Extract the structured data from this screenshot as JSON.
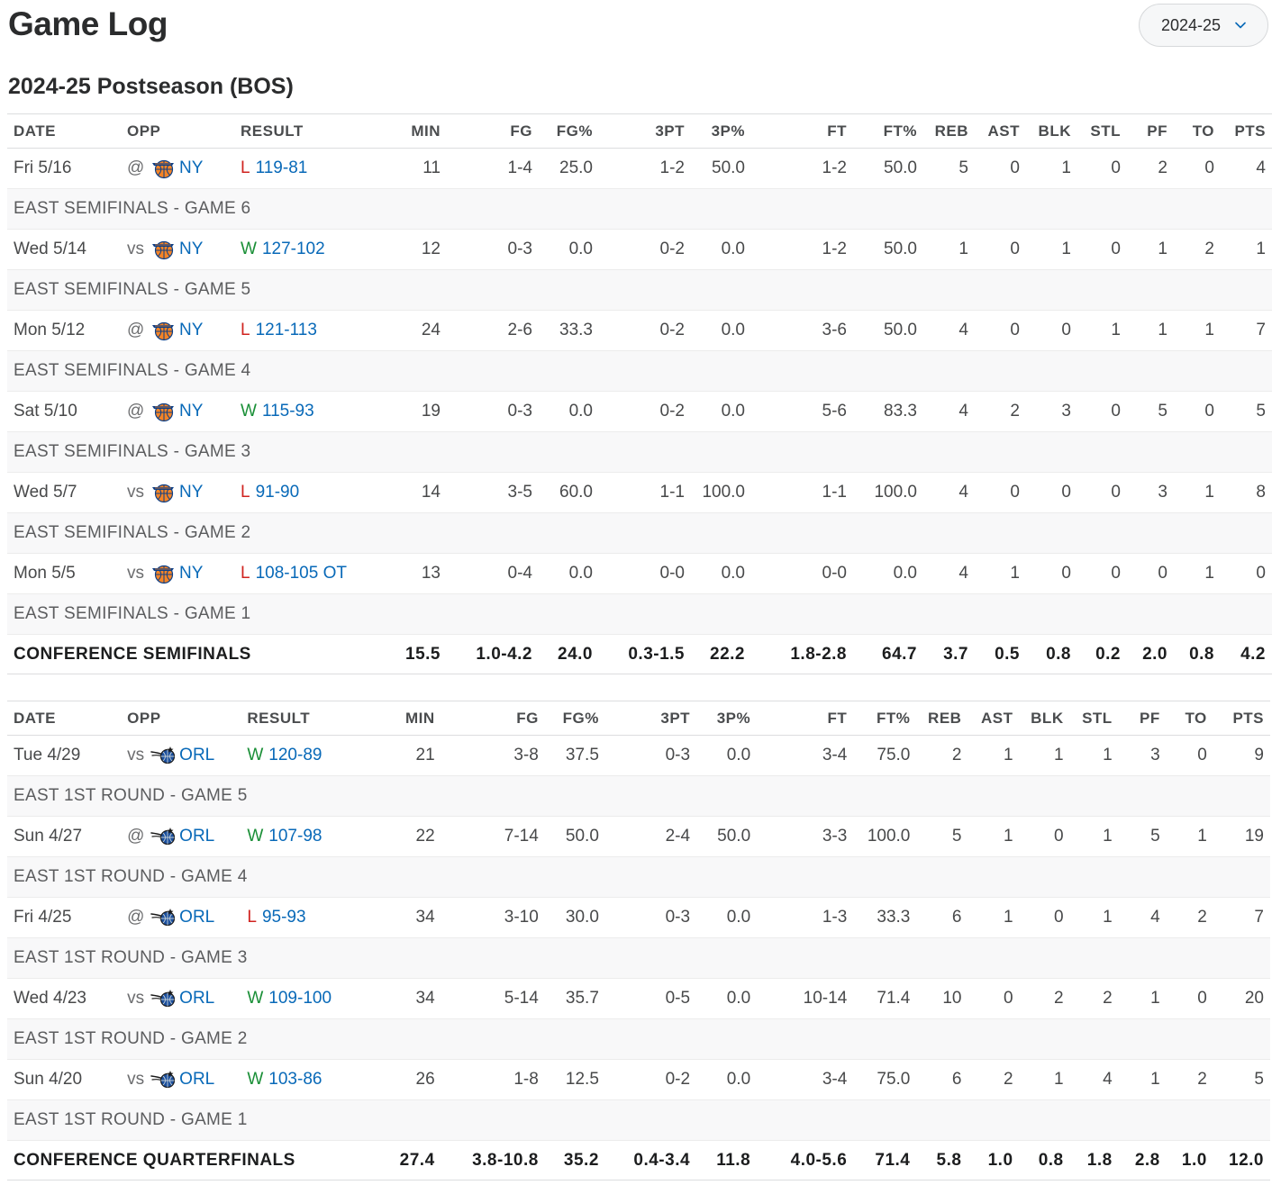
{
  "page_title": "Game Log",
  "season_selector": {
    "value": "2024-25"
  },
  "section_title": "2024-25 Postseason (BOS)",
  "columns": [
    "DATE",
    "OPP",
    "RESULT",
    "MIN",
    "FG",
    "FG%",
    "3PT",
    "3P%",
    "FT",
    "FT%",
    "REB",
    "AST",
    "BLK",
    "STL",
    "PF",
    "TO",
    "PTS"
  ],
  "series": [
    {
      "games": [
        {
          "date": "Fri 5/16",
          "venue": "@",
          "opp": "NY",
          "logo": "knicks-logo",
          "wl": "L",
          "score": "119-81",
          "stats": [
            "11",
            "1-4",
            "25.0",
            "1-2",
            "50.0",
            "1-2",
            "50.0",
            "5",
            "0",
            "1",
            "0",
            "2",
            "0",
            "4"
          ],
          "note": "EAST SEMIFINALS - GAME 6"
        },
        {
          "date": "Wed 5/14",
          "venue": "vs",
          "opp": "NY",
          "logo": "knicks-logo",
          "wl": "W",
          "score": "127-102",
          "stats": [
            "12",
            "0-3",
            "0.0",
            "0-2",
            "0.0",
            "1-2",
            "50.0",
            "1",
            "0",
            "1",
            "0",
            "1",
            "2",
            "1"
          ],
          "note": "EAST SEMIFINALS - GAME 5"
        },
        {
          "date": "Mon 5/12",
          "venue": "@",
          "opp": "NY",
          "logo": "knicks-logo",
          "wl": "L",
          "score": "121-113",
          "stats": [
            "24",
            "2-6",
            "33.3",
            "0-2",
            "0.0",
            "3-6",
            "50.0",
            "4",
            "0",
            "0",
            "1",
            "1",
            "1",
            "7"
          ],
          "note": "EAST SEMIFINALS - GAME 4"
        },
        {
          "date": "Sat 5/10",
          "venue": "@",
          "opp": "NY",
          "logo": "knicks-logo",
          "wl": "W",
          "score": "115-93",
          "stats": [
            "19",
            "0-3",
            "0.0",
            "0-2",
            "0.0",
            "5-6",
            "83.3",
            "4",
            "2",
            "3",
            "0",
            "5",
            "0",
            "5"
          ],
          "note": "EAST SEMIFINALS - GAME 3"
        },
        {
          "date": "Wed 5/7",
          "venue": "vs",
          "opp": "NY",
          "logo": "knicks-logo",
          "wl": "L",
          "score": "91-90",
          "stats": [
            "14",
            "3-5",
            "60.0",
            "1-1",
            "100.0",
            "1-1",
            "100.0",
            "4",
            "0",
            "0",
            "0",
            "3",
            "1",
            "8"
          ],
          "note": "EAST SEMIFINALS - GAME 2"
        },
        {
          "date": "Mon 5/5",
          "venue": "vs",
          "opp": "NY",
          "logo": "knicks-logo",
          "wl": "L",
          "score": "108-105 OT",
          "stats": [
            "13",
            "0-4",
            "0.0",
            "0-0",
            "0.0",
            "0-0",
            "0.0",
            "4",
            "1",
            "0",
            "0",
            "0",
            "1",
            "0"
          ],
          "note": "EAST SEMIFINALS - GAME 1"
        }
      ],
      "summary": {
        "label": "CONFERENCE SEMIFINALS",
        "stats": [
          "15.5",
          "1.0-4.2",
          "24.0",
          "0.3-1.5",
          "22.2",
          "1.8-2.8",
          "64.7",
          "3.7",
          "0.5",
          "0.8",
          "0.2",
          "2.0",
          "0.8",
          "4.2"
        ]
      }
    },
    {
      "games": [
        {
          "date": "Tue 4/29",
          "venue": "vs",
          "opp": "ORL",
          "logo": "magic-logo",
          "wl": "W",
          "score": "120-89",
          "stats": [
            "21",
            "3-8",
            "37.5",
            "0-3",
            "0.0",
            "3-4",
            "75.0",
            "2",
            "1",
            "1",
            "1",
            "3",
            "0",
            "9"
          ],
          "note": "EAST 1ST ROUND - GAME 5"
        },
        {
          "date": "Sun 4/27",
          "venue": "@",
          "opp": "ORL",
          "logo": "magic-logo",
          "wl": "W",
          "score": "107-98",
          "stats": [
            "22",
            "7-14",
            "50.0",
            "2-4",
            "50.0",
            "3-3",
            "100.0",
            "5",
            "1",
            "0",
            "1",
            "5",
            "1",
            "19"
          ],
          "note": "EAST 1ST ROUND - GAME 4"
        },
        {
          "date": "Fri 4/25",
          "venue": "@",
          "opp": "ORL",
          "logo": "magic-logo",
          "wl": "L",
          "score": "95-93",
          "stats": [
            "34",
            "3-10",
            "30.0",
            "0-3",
            "0.0",
            "1-3",
            "33.3",
            "6",
            "1",
            "0",
            "1",
            "4",
            "2",
            "7"
          ],
          "note": "EAST 1ST ROUND - GAME 3"
        },
        {
          "date": "Wed 4/23",
          "venue": "vs",
          "opp": "ORL",
          "logo": "magic-logo",
          "wl": "W",
          "score": "109-100",
          "stats": [
            "34",
            "5-14",
            "35.7",
            "0-5",
            "0.0",
            "10-14",
            "71.4",
            "10",
            "0",
            "2",
            "2",
            "1",
            "0",
            "20"
          ],
          "note": "EAST 1ST ROUND - GAME 2"
        },
        {
          "date": "Sun 4/20",
          "venue": "vs",
          "opp": "ORL",
          "logo": "magic-logo",
          "wl": "W",
          "score": "103-86",
          "stats": [
            "26",
            "1-8",
            "12.5",
            "0-2",
            "0.0",
            "3-4",
            "75.0",
            "6",
            "2",
            "1",
            "4",
            "1",
            "2",
            "5"
          ],
          "note": "EAST 1ST ROUND - GAME 1"
        }
      ],
      "summary": {
        "label": "CONFERENCE QUARTERFINALS",
        "stats": [
          "27.4",
          "3.8-10.8",
          "35.2",
          "0.4-3.4",
          "11.8",
          "4.0-5.6",
          "71.4",
          "5.8",
          "1.0",
          "0.8",
          "1.8",
          "2.8",
          "1.0",
          "12.0"
        ]
      }
    }
  ],
  "colors": {
    "win": "#1a8f37",
    "loss": "#d0231f",
    "link": "#0869b8"
  }
}
